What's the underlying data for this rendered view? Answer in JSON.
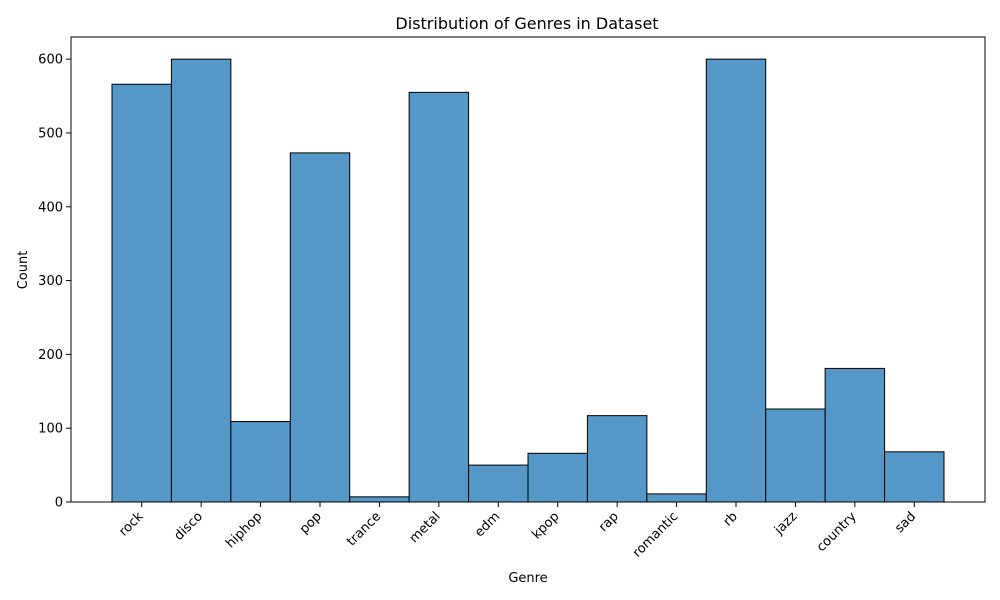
{
  "chart_data": {
    "type": "bar",
    "title": "Distribution of Genres in Dataset",
    "xlabel": "Genre",
    "ylabel": "Count",
    "categories": [
      "rock",
      "disco",
      "hiphop",
      "pop",
      "trance",
      "metal",
      "edm",
      "kpop",
      "rap",
      "romantic",
      "rb",
      "jazz",
      "country",
      "sad"
    ],
    "values": [
      566,
      600,
      109,
      473,
      7,
      555,
      50,
      66,
      117,
      11,
      600,
      126,
      181,
      68
    ],
    "ylim": [
      0,
      630
    ],
    "yticks": [
      0,
      100,
      200,
      300,
      400,
      500,
      600
    ],
    "grid": false,
    "legend": "none",
    "colors": {
      "bar_fill": "#5597c6",
      "bar_edge": "#000000"
    }
  }
}
